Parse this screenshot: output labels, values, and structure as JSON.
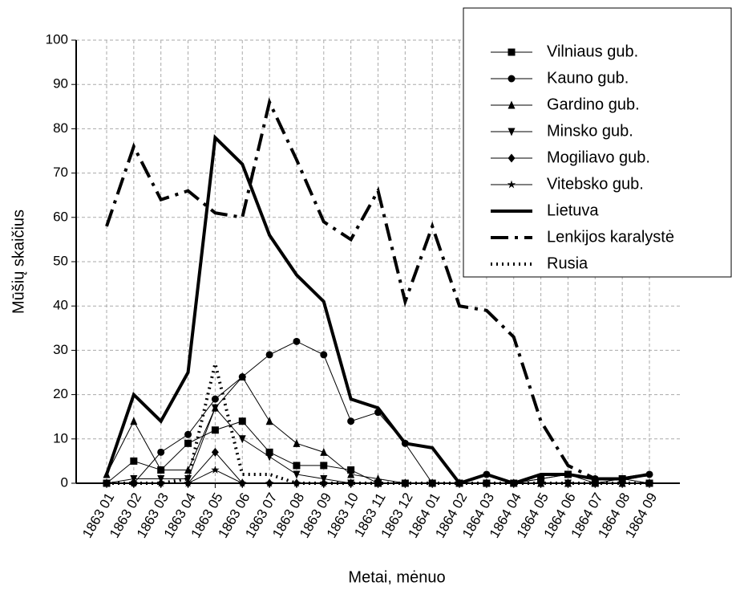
{
  "chart_data": {
    "type": "line",
    "xlabel": "Metai, mėnuo",
    "ylabel": "Mūšių skaičius",
    "categories": [
      "1863 01",
      "1863 02",
      "1863 03",
      "1863 04",
      "1863 05",
      "1863 06",
      "1863 07",
      "1863 08",
      "1863 09",
      "1863 10",
      "1863 11",
      "1863 12",
      "1864 01",
      "1864 02",
      "1864 03",
      "1864 04",
      "1864 05",
      "1864 06",
      "1864 07",
      "1864 08",
      "1864 09"
    ],
    "ylim": [
      0,
      100
    ],
    "yticks": [
      0,
      10,
      20,
      30,
      40,
      50,
      60,
      70,
      80,
      90,
      100
    ],
    "grid": true,
    "legend": "upper right",
    "series": [
      {
        "name": "Vilniaus gub.",
        "color": "#000000",
        "marker": "square",
        "linestyle": "solid",
        "linewidth": 1,
        "values": [
          0,
          5,
          3,
          9,
          12,
          14,
          7,
          4,
          4,
          3,
          0,
          0,
          0,
          0,
          0,
          0,
          1,
          2,
          0,
          1,
          0
        ]
      },
      {
        "name": "Kauno gub.",
        "color": "#000000",
        "marker": "circle",
        "linestyle": "solid",
        "linewidth": 1,
        "values": [
          0,
          0,
          7,
          11,
          19,
          24,
          29,
          32,
          29,
          14,
          16,
          9,
          0,
          0,
          2,
          0,
          1,
          2,
          1,
          1,
          2
        ]
      },
      {
        "name": "Gardino gub.",
        "color": "#000000",
        "marker": "triangle",
        "linestyle": "solid",
        "linewidth": 1,
        "values": [
          2,
          14,
          3,
          3,
          17,
          24,
          14,
          9,
          7,
          2,
          1,
          0,
          0,
          0,
          0,
          0,
          0,
          0,
          0,
          0,
          0
        ]
      },
      {
        "name": "Minsko gub.",
        "color": "#000000",
        "marker": "triangle-down",
        "linestyle": "solid",
        "linewidth": 1,
        "values": [
          0,
          1,
          1,
          1,
          17,
          10,
          6,
          2,
          1,
          0,
          0,
          0,
          0,
          0,
          0,
          0,
          0,
          0,
          0,
          0,
          0
        ]
      },
      {
        "name": "Mogiliavo gub.",
        "color": "#000000",
        "marker": "diamond",
        "linestyle": "solid",
        "linewidth": 1,
        "values": [
          0,
          0,
          0,
          0,
          7,
          0,
          0,
          0,
          0,
          0,
          0,
          0,
          0,
          0,
          0,
          0,
          0,
          0,
          0,
          0,
          0
        ]
      },
      {
        "name": "Vitebsko gub.",
        "color": "#000000",
        "marker": "star",
        "linestyle": "solid",
        "linewidth": 1,
        "values": [
          0,
          0,
          0,
          0,
          3,
          0,
          0,
          0,
          0,
          0,
          0,
          0,
          0,
          0,
          0,
          0,
          0,
          0,
          0,
          0,
          0
        ]
      },
      {
        "name": "Lietuva",
        "color": "#000000",
        "marker": "none",
        "linestyle": "solid",
        "linewidth": 4,
        "values": [
          2,
          20,
          14,
          25,
          78,
          72,
          56,
          47,
          41,
          19,
          17,
          9,
          8,
          0,
          2,
          0,
          2,
          2,
          1,
          1,
          2
        ]
      },
      {
        "name": "Lenkijos karalystė",
        "color": "#000000",
        "marker": "none",
        "linestyle": "dashdot",
        "linewidth": 4,
        "values": [
          58,
          76,
          64,
          66,
          61,
          60,
          86,
          73,
          59,
          55,
          66,
          41,
          58,
          40,
          39,
          33,
          14,
          4,
          1,
          1,
          2
        ]
      },
      {
        "name": "Rusia",
        "color": "#000000",
        "marker": "none",
        "linestyle": "dotted",
        "linewidth": 4,
        "values": [
          0,
          0,
          0,
          1,
          27,
          2,
          2,
          0,
          0,
          0,
          0,
          0,
          0,
          0,
          0,
          0,
          0,
          0,
          0,
          0,
          0
        ]
      }
    ]
  }
}
